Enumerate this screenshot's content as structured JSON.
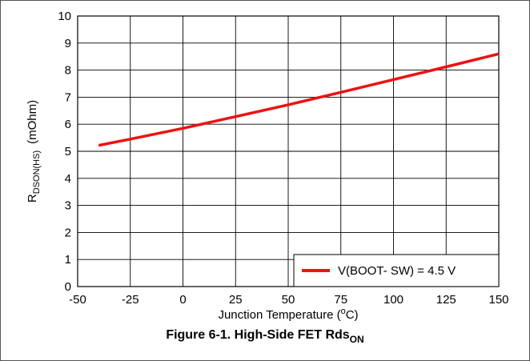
{
  "chart_data": {
    "type": "line",
    "xlabel_main": "Junction Temperature (",
    "xlabel_sup": "o",
    "xlabel_end": "C)",
    "ylabel_main": "R",
    "ylabel_sub": "DSON(HS)",
    "ylabel_end": "(mOhm)",
    "x_ticks": [
      -50,
      -25,
      0,
      25,
      50,
      75,
      100,
      125,
      150
    ],
    "y_ticks": [
      0,
      1,
      2,
      3,
      4,
      5,
      6,
      7,
      8,
      9,
      10
    ],
    "xlim": [
      -50,
      150
    ],
    "ylim": [
      0,
      10
    ],
    "grid": true,
    "legend_position": "bottom-right",
    "series": [
      {
        "name": "V(BOOT- SW) = 4.5 V",
        "color": "#ee1111",
        "x": [
          -40,
          -25,
          0,
          25,
          50,
          75,
          100,
          125,
          150
        ],
        "y": [
          5.22,
          5.45,
          5.85,
          6.28,
          6.72,
          7.18,
          7.65,
          8.12,
          8.6
        ]
      }
    ]
  },
  "caption": {
    "main": "Figure 6-1. High-Side FET Rds",
    "sub": "ON"
  }
}
